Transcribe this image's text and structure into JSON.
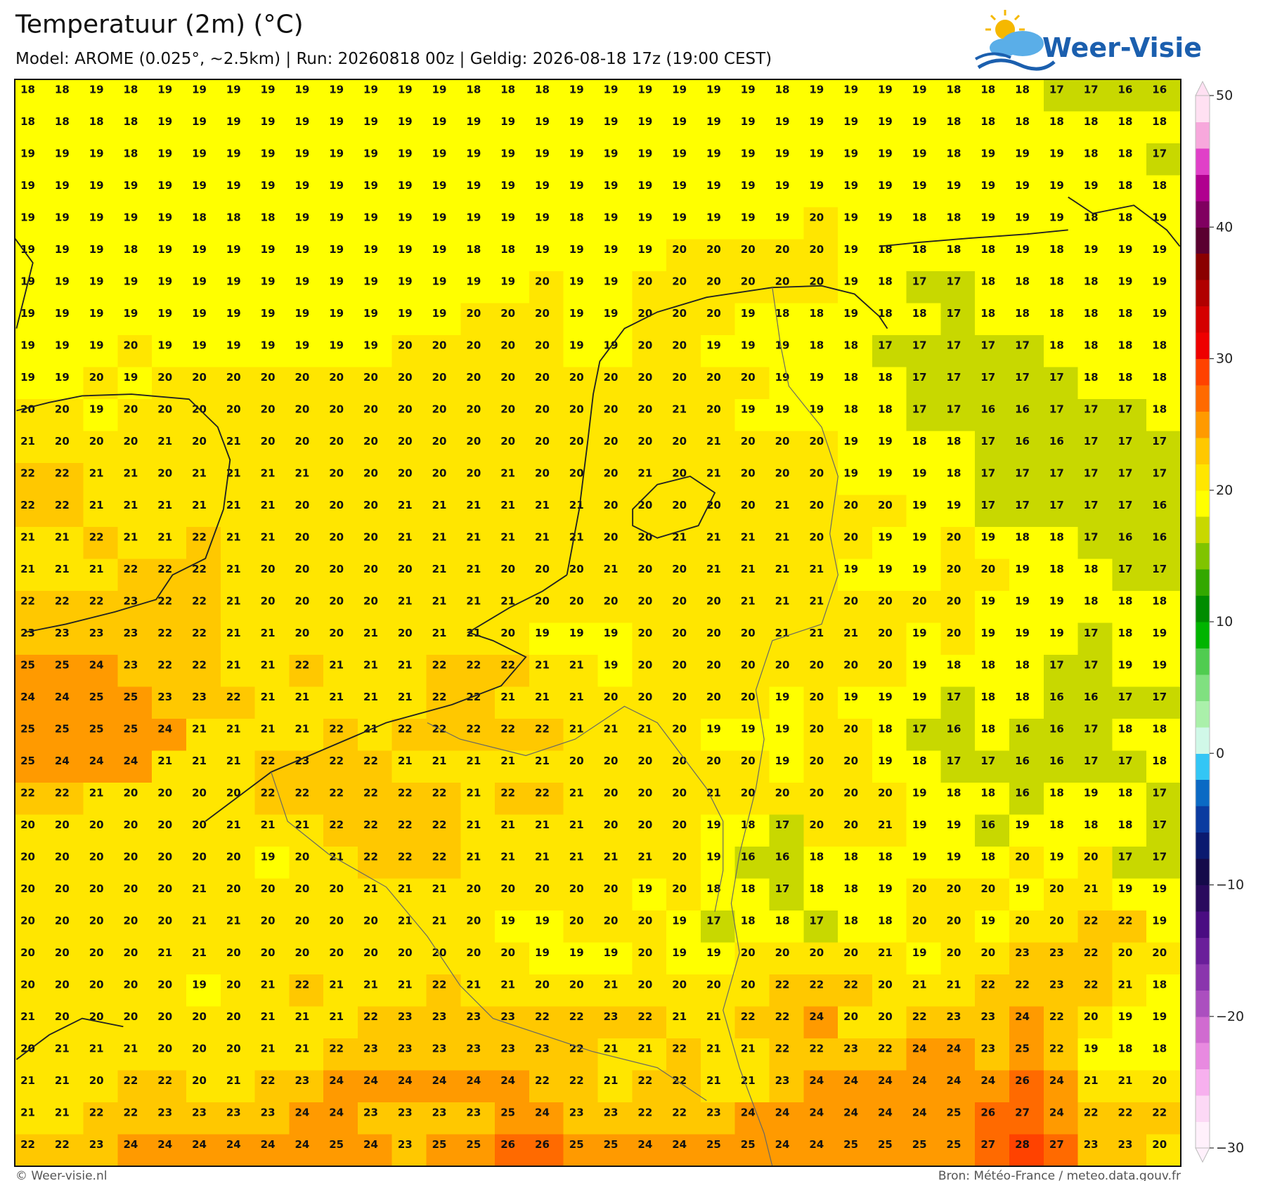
{
  "chart_data": {
    "type": "heatmap",
    "title": "Temperatuur (2m) (°C)",
    "subtitle": "Model: AROME (0.025°, ~2.5km)  |  Run: 20260818 00z  |  Geldig: 2026-08-18 17z (19:00 CEST)",
    "logo": "Weer-Visie",
    "credit": "© Weer-visie.nl",
    "source": "Bron: Météo-France / meteo.data.gouv.fr",
    "clim": [
      -30,
      50
    ],
    "cticks": [
      {
        "value": -30,
        "label": "−30"
      },
      {
        "value": -20,
        "label": "−20"
      },
      {
        "value": -10,
        "label": "−10"
      },
      0,
      10,
      20,
      30,
      40,
      50
    ],
    "colors": [
      "#fff0fb",
      "#fcd8f5",
      "#f7b0ee",
      "#e88ae0",
      "#d06bd0",
      "#ab4fbf",
      "#8a35ad",
      "#6a1e9a",
      "#4a0c82",
      "#2a0a5e",
      "#150a4a",
      "#0a1a70",
      "#0a3ba0",
      "#0a6ac4",
      "#33c6f5",
      "#d0f8e8",
      "#aaf0aa",
      "#80e080",
      "#50cc50",
      "#00b400",
      "#008c00",
      "#33a800",
      "#80c400",
      "#c8d800",
      "#ffff00",
      "#ffe600",
      "#ffc800",
      "#ff9a00",
      "#ff6a00",
      "#ff4200",
      "#ee0000",
      "#d40000",
      "#b00000",
      "#8a0000",
      "#5a0030",
      "#800060",
      "#b0008f",
      "#e040c8",
      "#f7a8dc",
      "#ffe0f2"
    ],
    "values": [
      [
        18,
        18,
        19,
        18,
        19,
        19,
        19,
        19,
        19,
        19,
        19,
        19,
        19,
        18,
        18,
        18,
        19,
        19,
        19,
        19,
        19,
        19,
        18,
        19,
        19,
        19,
        19,
        18,
        18,
        18,
        17,
        17,
        16,
        16
      ],
      [
        18,
        18,
        18,
        18,
        19,
        19,
        19,
        19,
        19,
        19,
        19,
        19,
        19,
        19,
        19,
        19,
        19,
        19,
        19,
        19,
        19,
        19,
        19,
        19,
        19,
        19,
        19,
        18,
        18,
        18,
        18,
        18,
        18,
        18
      ],
      [
        19,
        19,
        19,
        18,
        19,
        19,
        19,
        19,
        19,
        19,
        19,
        19,
        19,
        19,
        19,
        19,
        19,
        19,
        19,
        19,
        19,
        19,
        19,
        19,
        19,
        19,
        19,
        18,
        19,
        19,
        19,
        18,
        18,
        17
      ],
      [
        19,
        19,
        19,
        19,
        19,
        19,
        19,
        19,
        19,
        19,
        19,
        19,
        19,
        19,
        19,
        19,
        19,
        19,
        19,
        19,
        19,
        19,
        19,
        19,
        19,
        19,
        19,
        19,
        19,
        19,
        19,
        19,
        18,
        18
      ],
      [
        19,
        19,
        19,
        19,
        19,
        18,
        18,
        18,
        19,
        19,
        19,
        19,
        19,
        19,
        19,
        19,
        18,
        19,
        19,
        19,
        19,
        19,
        19,
        20,
        19,
        19,
        18,
        18,
        19,
        19,
        19,
        18,
        18,
        19
      ],
      [
        19,
        19,
        19,
        18,
        19,
        19,
        19,
        19,
        19,
        19,
        19,
        19,
        19,
        18,
        18,
        19,
        19,
        19,
        19,
        20,
        20,
        20,
        20,
        20,
        19,
        18,
        18,
        18,
        18,
        19,
        18,
        19,
        19,
        19
      ],
      [
        19,
        19,
        19,
        19,
        19,
        19,
        19,
        19,
        19,
        19,
        19,
        19,
        19,
        19,
        19,
        20,
        19,
        19,
        20,
        20,
        20,
        20,
        20,
        20,
        19,
        18,
        17,
        17,
        18,
        18,
        18,
        18,
        19,
        19
      ],
      [
        19,
        19,
        19,
        19,
        19,
        19,
        19,
        19,
        19,
        19,
        19,
        19,
        19,
        20,
        20,
        20,
        19,
        19,
        20,
        20,
        20,
        19,
        18,
        18,
        19,
        18,
        18,
        17,
        18,
        18,
        18,
        18,
        18,
        19
      ],
      [
        19,
        19,
        19,
        20,
        19,
        19,
        19,
        19,
        19,
        19,
        19,
        20,
        20,
        20,
        20,
        20,
        19,
        19,
        20,
        20,
        19,
        19,
        19,
        18,
        18,
        17,
        17,
        17,
        17,
        17,
        18,
        18,
        18,
        18
      ],
      [
        19,
        19,
        20,
        19,
        20,
        20,
        20,
        20,
        20,
        20,
        20,
        20,
        20,
        20,
        20,
        20,
        20,
        20,
        20,
        20,
        20,
        20,
        19,
        19,
        18,
        18,
        17,
        17,
        17,
        17,
        17,
        18,
        18,
        18
      ],
      [
        20,
        20,
        19,
        20,
        20,
        20,
        20,
        20,
        20,
        20,
        20,
        20,
        20,
        20,
        20,
        20,
        20,
        20,
        20,
        21,
        20,
        19,
        19,
        19,
        18,
        18,
        17,
        17,
        16,
        16,
        17,
        17,
        17,
        18
      ],
      [
        21,
        20,
        20,
        20,
        21,
        20,
        21,
        20,
        20,
        20,
        20,
        20,
        20,
        20,
        20,
        20,
        20,
        20,
        20,
        20,
        21,
        20,
        20,
        20,
        19,
        19,
        18,
        18,
        17,
        16,
        16,
        17,
        17,
        17
      ],
      [
        22,
        22,
        21,
        21,
        20,
        21,
        21,
        21,
        21,
        20,
        20,
        20,
        20,
        20,
        21,
        20,
        20,
        20,
        21,
        20,
        21,
        20,
        20,
        20,
        19,
        19,
        19,
        18,
        17,
        17,
        17,
        17,
        17,
        17
      ],
      [
        22,
        22,
        21,
        21,
        21,
        21,
        21,
        21,
        20,
        20,
        20,
        21,
        21,
        21,
        21,
        21,
        21,
        20,
        20,
        20,
        20,
        20,
        21,
        20,
        20,
        20,
        19,
        19,
        17,
        17,
        17,
        17,
        17,
        16
      ],
      [
        21,
        21,
        22,
        21,
        21,
        22,
        21,
        21,
        20,
        20,
        20,
        21,
        21,
        21,
        21,
        21,
        21,
        20,
        20,
        21,
        21,
        21,
        21,
        20,
        20,
        19,
        19,
        20,
        19,
        18,
        18,
        17,
        16,
        16
      ],
      [
        21,
        21,
        21,
        22,
        22,
        22,
        21,
        20,
        20,
        20,
        20,
        20,
        21,
        21,
        20,
        20,
        20,
        21,
        20,
        20,
        21,
        21,
        21,
        21,
        19,
        19,
        19,
        20,
        20,
        19,
        18,
        18,
        17,
        17
      ],
      [
        22,
        22,
        22,
        23,
        22,
        22,
        21,
        20,
        20,
        20,
        20,
        21,
        21,
        21,
        21,
        20,
        20,
        20,
        20,
        20,
        20,
        21,
        21,
        21,
        20,
        20,
        20,
        20,
        19,
        19,
        19,
        18,
        18,
        18
      ],
      [
        23,
        23,
        23,
        23,
        22,
        22,
        21,
        21,
        20,
        20,
        21,
        20,
        21,
        21,
        20,
        19,
        19,
        19,
        20,
        20,
        20,
        20,
        21,
        21,
        21,
        20,
        19,
        20,
        19,
        19,
        19,
        17,
        18,
        19
      ],
      [
        25,
        25,
        24,
        23,
        22,
        22,
        21,
        21,
        22,
        21,
        21,
        21,
        22,
        22,
        22,
        21,
        21,
        19,
        20,
        20,
        20,
        20,
        20,
        20,
        20,
        20,
        19,
        18,
        18,
        18,
        17,
        17,
        19,
        19
      ],
      [
        24,
        24,
        25,
        25,
        23,
        23,
        22,
        21,
        21,
        21,
        21,
        21,
        22,
        22,
        21,
        21,
        21,
        20,
        20,
        20,
        20,
        20,
        19,
        20,
        19,
        19,
        19,
        17,
        18,
        18,
        16,
        16,
        17,
        17
      ],
      [
        25,
        25,
        25,
        25,
        24,
        21,
        21,
        21,
        21,
        22,
        21,
        22,
        22,
        22,
        22,
        22,
        21,
        21,
        21,
        20,
        19,
        19,
        19,
        20,
        20,
        18,
        17,
        16,
        18,
        16,
        16,
        17,
        18,
        18
      ],
      [
        25,
        24,
        24,
        24,
        21,
        21,
        21,
        22,
        23,
        22,
        22,
        21,
        21,
        21,
        21,
        21,
        20,
        20,
        20,
        20,
        20,
        20,
        19,
        20,
        20,
        19,
        18,
        17,
        17,
        16,
        16,
        17,
        17,
        18
      ],
      [
        22,
        22,
        21,
        20,
        20,
        20,
        20,
        22,
        22,
        22,
        22,
        22,
        22,
        21,
        22,
        22,
        21,
        20,
        20,
        20,
        21,
        20,
        20,
        20,
        20,
        20,
        19,
        18,
        18,
        16,
        18,
        19,
        18,
        17
      ],
      [
        20,
        20,
        20,
        20,
        20,
        20,
        21,
        21,
        21,
        22,
        22,
        22,
        22,
        21,
        21,
        21,
        21,
        20,
        20,
        20,
        19,
        18,
        17,
        20,
        20,
        21,
        19,
        19,
        16,
        19,
        18,
        18,
        18,
        17
      ],
      [
        20,
        20,
        20,
        20,
        20,
        20,
        20,
        19,
        20,
        21,
        22,
        22,
        22,
        21,
        21,
        21,
        21,
        21,
        21,
        20,
        19,
        16,
        16,
        18,
        18,
        18,
        19,
        19,
        18,
        20,
        19,
        20,
        17,
        17
      ],
      [
        20,
        20,
        20,
        20,
        20,
        21,
        20,
        20,
        20,
        20,
        21,
        21,
        21,
        20,
        20,
        20,
        20,
        20,
        19,
        20,
        18,
        18,
        17,
        18,
        18,
        19,
        20,
        20,
        20,
        19,
        20,
        21,
        19,
        19
      ],
      [
        20,
        20,
        20,
        20,
        20,
        21,
        21,
        20,
        20,
        20,
        20,
        21,
        21,
        20,
        19,
        19,
        20,
        20,
        20,
        19,
        17,
        18,
        18,
        17,
        18,
        18,
        20,
        20,
        19,
        20,
        20,
        22,
        22,
        19
      ],
      [
        20,
        20,
        20,
        20,
        21,
        21,
        20,
        20,
        20,
        20,
        20,
        20,
        20,
        20,
        20,
        19,
        19,
        19,
        20,
        19,
        19,
        20,
        20,
        20,
        20,
        21,
        19,
        20,
        20,
        23,
        23,
        22,
        20,
        20
      ],
      [
        20,
        20,
        20,
        20,
        20,
        19,
        20,
        21,
        22,
        21,
        21,
        21,
        22,
        21,
        21,
        20,
        20,
        21,
        20,
        20,
        20,
        20,
        22,
        22,
        22,
        20,
        21,
        21,
        22,
        22,
        23,
        22,
        21,
        18
      ],
      [
        21,
        20,
        20,
        20,
        20,
        20,
        20,
        21,
        21,
        21,
        22,
        23,
        23,
        23,
        23,
        22,
        22,
        23,
        22,
        21,
        21,
        22,
        22,
        24,
        20,
        20,
        22,
        23,
        23,
        24,
        22,
        20,
        19,
        19
      ],
      [
        20,
        21,
        21,
        21,
        20,
        20,
        20,
        21,
        21,
        22,
        23,
        23,
        23,
        23,
        23,
        23,
        22,
        21,
        21,
        22,
        21,
        21,
        22,
        22,
        23,
        22,
        24,
        24,
        23,
        25,
        22,
        19,
        18,
        18
      ],
      [
        21,
        21,
        20,
        22,
        22,
        20,
        21,
        22,
        23,
        24,
        24,
        24,
        24,
        24,
        24,
        22,
        22,
        21,
        22,
        22,
        21,
        21,
        23,
        24,
        24,
        24,
        24,
        24,
        24,
        26,
        24,
        21,
        21,
        20
      ],
      [
        21,
        21,
        22,
        22,
        23,
        23,
        23,
        23,
        24,
        24,
        23,
        23,
        23,
        23,
        25,
        24,
        23,
        23,
        22,
        22,
        23,
        24,
        24,
        24,
        24,
        24,
        24,
        25,
        26,
        27,
        24,
        22,
        22,
        22
      ],
      [
        22,
        22,
        23,
        24,
        24,
        24,
        24,
        24,
        24,
        25,
        24,
        23,
        25,
        25,
        26,
        26,
        25,
        25,
        24,
        24,
        25,
        25,
        24,
        24,
        25,
        25,
        25,
        25,
        27,
        28,
        27,
        23,
        23,
        20
      ]
    ]
  }
}
